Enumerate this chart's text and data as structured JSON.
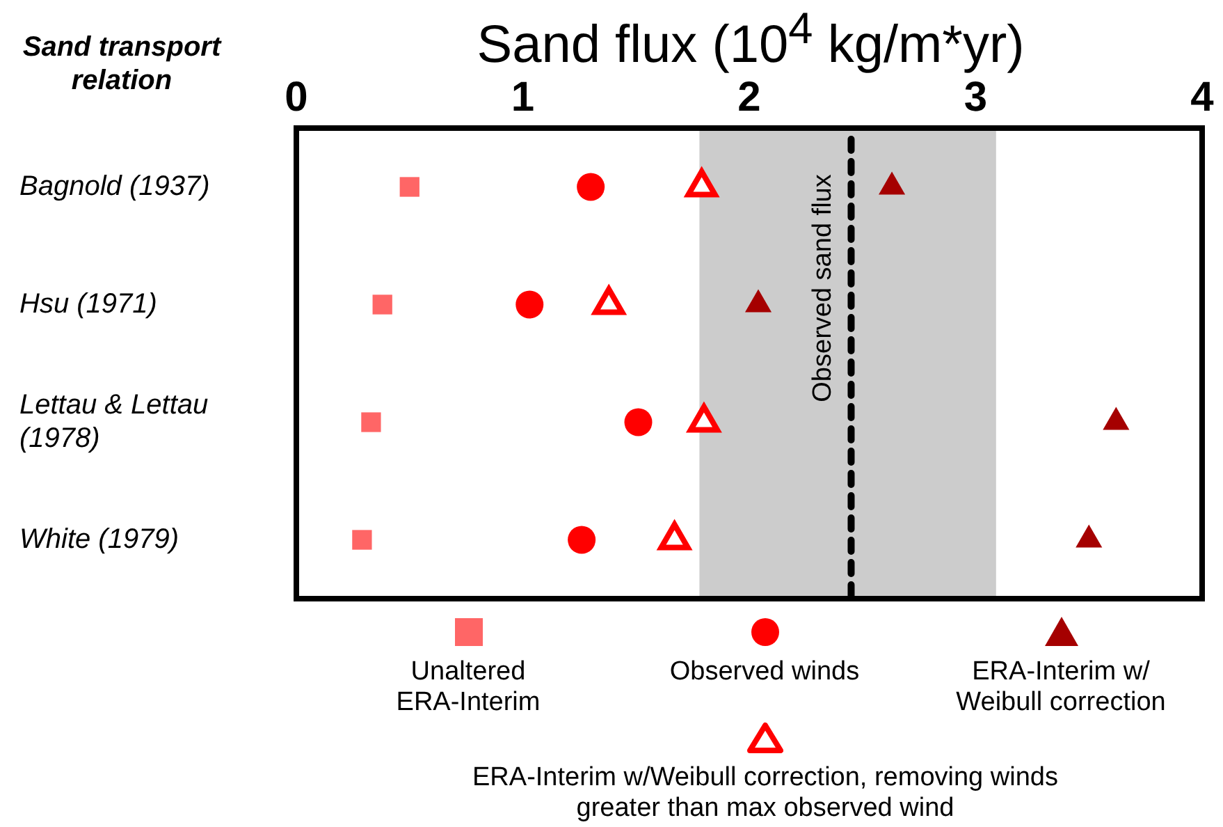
{
  "chart_data": {
    "type": "scatter",
    "orientation": "horizontal",
    "xlabel": "Sand flux (10$^{4}$ kg/m*yr)",
    "ylabel": "Sand transport relation",
    "categories": [
      "Bagnold (1937)",
      "Hsu (1971)",
      "Lettau & Lettau (1978)",
      "White (1979)"
    ],
    "xlim": [
      0,
      4
    ],
    "xticks": [
      0,
      1,
      2,
      3,
      4
    ],
    "grid": false,
    "legend": "bottom",
    "series": [
      {
        "name": "Unaltered ERA-Interim",
        "color": "#ff6666",
        "marker": "square",
        "values": [
          0.5,
          0.38,
          0.33,
          0.29
        ]
      },
      {
        "name": "Observed winds",
        "color": "#ff0000",
        "marker": "circle",
        "values": [
          1.3,
          1.03,
          1.51,
          1.26
        ]
      },
      {
        "name": "ERA-Interim w/ Weibull correction",
        "color": "#a50000",
        "marker": "triangle",
        "values": [
          2.63,
          2.04,
          3.62,
          3.5
        ]
      },
      {
        "name": "ERA-Interim w/Weibull correction, removing winds greater than max observed wind",
        "color": "#ff0000",
        "marker": "triangle-open",
        "values": [
          1.79,
          1.38,
          1.8,
          1.67
        ]
      }
    ],
    "bands": [
      {
        "axis": "x",
        "from": 1.78,
        "to": 3.09,
        "color": "#cccccc"
      }
    ],
    "ref_lines": [
      {
        "axis": "x",
        "value": 2.45,
        "label": "Observed sand flux",
        "color": "#000000",
        "line_style": "dashed"
      }
    ]
  }
}
